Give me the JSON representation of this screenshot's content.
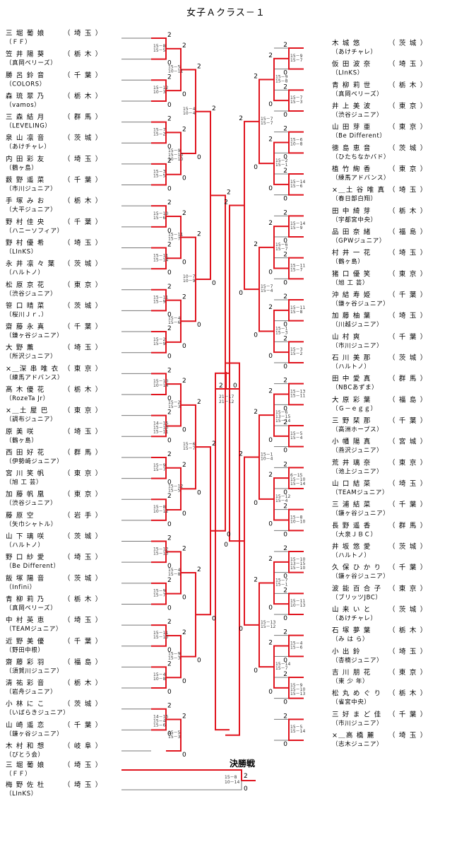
{
  "title": "女子Ａクラス－１",
  "final_title": "決勝戦",
  "left_players": [
    {
      "name": "三 堀 葡 娘",
      "pref": "埼 玉",
      "club": "ＦＦ"
    },
    {
      "name": "笠 井 陽 葵",
      "pref": "栃 木",
      "club": "真岡ベリーズ"
    },
    {
      "name": "勝 呂 鈴 音",
      "pref": "千 葉",
      "club": "COLORS"
    },
    {
      "name": "森 琉 翠 乃",
      "pref": "栃 木",
      "club": "vamos"
    },
    {
      "name": "三 森 結 月",
      "pref": "群 馬",
      "club": "LEVELING"
    },
    {
      "name": "泉 山 凛 音",
      "pref": "茨 城",
      "club": "あけチャレ"
    },
    {
      "name": "内 田 彩 友",
      "pref": "埼 玉",
      "club": "鶴ヶ島"
    },
    {
      "name": "薮 野 遥 菜",
      "pref": "千 葉",
      "club": "市川ジュニア"
    },
    {
      "name": "手 塚 み お",
      "pref": "栃 木",
      "club": "大平ジュニア"
    },
    {
      "name": "野 村 佳 央",
      "pref": "千 葉",
      "club": "ハニーソフィア"
    },
    {
      "name": "野 村 優 希",
      "pref": "埼 玉",
      "club": "LInKS"
    },
    {
      "name": "永 井 凛 々 葉",
      "pref": "茨 城",
      "club": "ハルトノ"
    },
    {
      "name": "松 原 京 花",
      "pref": "東 京",
      "club": "渋谷ジュニア"
    },
    {
      "name": "笹 口 晴 菜",
      "pref": "茨 城",
      "club": "桜川Ｊｒ．"
    },
    {
      "name": "齋 藤 永 真",
      "pref": "千 葉",
      "club": "鎌ヶ谷ジュニア"
    },
    {
      "name": "大 野 薫",
      "pref": "埼 玉",
      "club": "所沢ジュニア"
    },
    {
      "name": "×＿深 串 唯 衣",
      "pref": "東 京",
      "club": "練馬アドバンス"
    },
    {
      "name": "髙 木 優 花",
      "pref": "栃 木",
      "club": "RozeTa Jr"
    },
    {
      "name": "×＿土 屋 巴",
      "pref": "東 京",
      "club": "調布ジュニア"
    },
    {
      "name": "原 美 咲",
      "pref": "埼 玉",
      "club": "鶴ヶ島"
    },
    {
      "name": "西 田 好 花",
      "pref": "群 馬",
      "club": "伊勢崎ジュニア"
    },
    {
      "name": "宮 川 笑 帆",
      "pref": "東 京",
      "club": "旭 工 芸"
    },
    {
      "name": "加 藤 帆 凰",
      "pref": "東 京",
      "club": "渋谷ジュニア"
    },
    {
      "name": "藤 原 空",
      "pref": "岩 手",
      "club": "矢巾シャトル"
    },
    {
      "name": "山 下 璃 咲",
      "pref": "茨 城",
      "club": "ハルトノ"
    },
    {
      "name": "野 口 紗 愛",
      "pref": "埼 玉",
      "club": "Be Different"
    },
    {
      "name": "飯 塚 陽 音",
      "pref": "茨 城",
      "club": "Infini"
    },
    {
      "name": "青 柳 莉 乃",
      "pref": "栃 木",
      "club": "真岡ベリーズ"
    },
    {
      "name": "中 村 英 恵",
      "pref": "埼 玉",
      "club": "TEAMジュニア"
    },
    {
      "name": "近 野 美 優",
      "pref": "千 葉",
      "club": "野田中根"
    },
    {
      "name": "齋 藤 彩 羽",
      "pref": "福 島",
      "club": "須賀川ジュニア"
    },
    {
      "name": "清 祐 彩 音",
      "pref": "栃 木",
      "club": "岩舟ジュニア"
    },
    {
      "name": "小 林 に こ",
      "pref": "茨 城",
      "club": "いばらきジュニア"
    },
    {
      "name": "山 崎 遥 恋",
      "pref": "千 葉",
      "club": "鎌ヶ谷ジュニア"
    },
    {
      "name": "木 村 和 想",
      "pref": "岐 阜",
      "club": "ぴとう会"
    }
  ],
  "right_players": [
    {
      "name": "木 城 悠",
      "pref": "茨 城",
      "club": "あけチャレ"
    },
    {
      "name": "仮 田 波 奈",
      "pref": "埼 玉",
      "club": "LInKS"
    },
    {
      "name": "青 柳 莉 世",
      "pref": "栃 木",
      "club": "真岡ベリーズ"
    },
    {
      "name": "井 上 美 波",
      "pref": "東 京",
      "club": "渋谷ジュニア"
    },
    {
      "name": "山 田 芽 亜",
      "pref": "東 京",
      "club": "Be Different"
    },
    {
      "name": "徳 島 恵 音",
      "pref": "茨 城",
      "club": "ひたちなかバド"
    },
    {
      "name": "植 竹 絢 香",
      "pref": "東 京",
      "club": "練馬アドバンス"
    },
    {
      "name": "×＿土 谷 唯 真",
      "pref": "埼 玉",
      "club": "春日部白翔"
    },
    {
      "name": "田 中 綺 芽",
      "pref": "栃 木",
      "club": "宇都宮中央"
    },
    {
      "name": "品 田 奈 緒",
      "pref": "福 島",
      "club": "GPWジュニア"
    },
    {
      "name": "村 井 一 花",
      "pref": "埼 玉",
      "club": "鶴ヶ島"
    },
    {
      "name": "猪 口 優 笑",
      "pref": "東 京",
      "club": "旭 工 芸"
    },
    {
      "name": "沖 結 寿 姫",
      "pref": "千 葉",
      "club": "鎌ヶ谷ジュニア"
    },
    {
      "name": "加 藤 柚 葉",
      "pref": "埼 玉",
      "club": "川越ジュニア"
    },
    {
      "name": "山 村 爽",
      "pref": "千 葉",
      "club": "市川ジュニア"
    },
    {
      "name": "石 川 美 那",
      "pref": "茨 城",
      "club": "ハルトノ"
    },
    {
      "name": "田 中 愛 真",
      "pref": "群 馬",
      "club": "NBCあずま"
    },
    {
      "name": "大 原 彩 葉",
      "pref": "福 島",
      "club": "Ｇ－ｅｇｇ"
    },
    {
      "name": "三 野 栞 那",
      "pref": "千 葉",
      "club": "高洲ホープス"
    },
    {
      "name": "小 幡 陽 真",
      "pref": "宮 城",
      "club": "燕沢ジュニア"
    },
    {
      "name": "荒 井 璃 奈",
      "pref": "東 京",
      "club": "池上ジュニア"
    },
    {
      "name": "山 口 結 菜",
      "pref": "埼 玉",
      "club": "TEAMジュニア"
    },
    {
      "name": "三 浦 結 菜",
      "pref": "千 葉",
      "club": "鎌ヶ谷ジュニア"
    },
    {
      "name": "長 野 遥 香",
      "pref": "群 馬",
      "club": "大泉ＪＢＣ"
    },
    {
      "name": "井 坂 悠 愛",
      "pref": "茨 城",
      "club": "ハルトノ"
    },
    {
      "name": "久 保 ひ か り",
      "pref": "千 葉",
      "club": "鎌ヶ谷ジュニア"
    },
    {
      "name": "波 能 百 合 子",
      "pref": "東 京",
      "club": "ブリッツJBC"
    },
    {
      "name": "山 来 い と",
      "pref": "茨 城",
      "club": "あけチャレ"
    },
    {
      "name": "石 塚 夢 葉",
      "pref": "栃 木",
      "club": "み は ら"
    },
    {
      "name": "小 出 鈴",
      "pref": "埼 玉",
      "club": "杏楠ジュニア"
    },
    {
      "name": "吉 川 朋 花",
      "pref": "東 京",
      "club": "東 少 年"
    },
    {
      "name": "松 丸 め ぐ り",
      "pref": "栃 木",
      "club": "雀宮中央"
    },
    {
      "name": "三 好 ま ど 佳",
      "pref": "千 葉",
      "club": "市川ジュニア"
    },
    {
      "name": "×＿高 橋 麗",
      "pref": "埼 玉",
      "club": "志木ジュニア"
    }
  ],
  "final_players": [
    {
      "name": "三 堀 葡 娘",
      "pref": "埼 玉",
      "club": "ＦＦ"
    },
    {
      "name": "梅 野 佐 杜",
      "pref": "埼 玉",
      "club": "LInKS"
    }
  ],
  "final_score": [
    "15－8",
    "10－14"
  ],
  "final_results": [
    "2",
    "0"
  ],
  "semifinal_score": [
    "21－17",
    "21－12"
  ],
  "semifinal_results": [
    "2",
    "0"
  ],
  "left_semi_score": [
    "15－9",
    "15－4"
  ],
  "right_semi_score": [
    "15－12",
    "15－7"
  ],
  "left_quarter_scores": [
    [
      "15－5",
      "15－8"
    ],
    [
      "15－10",
      "15－6"
    ]
  ],
  "right_quarter_scores": [
    [
      "15－13",
      "15－8"
    ],
    [
      "15－6",
      "13－15",
      "15－14"
    ]
  ],
  "left_match_scores": [
    [
      "15－8",
      "15－5"
    ],
    [
      "15－12",
      "10－3"
    ],
    [
      "15－7",
      "15－2"
    ],
    [
      "15－3",
      "15－5"
    ],
    [
      "15－10",
      "15－6"
    ],
    [
      "15－11",
      "15－14"
    ],
    [
      "15－11",
      "15－9"
    ],
    [
      "15－2",
      "15－9"
    ],
    [
      "15－10",
      "10－14"
    ],
    [
      "14－15",
      "15－10",
      "15－11"
    ],
    [
      "15－9",
      "15－7"
    ],
    [
      "15－8",
      "10－12"
    ],
    [
      "15－12",
      "15－13"
    ],
    [
      "15－9",
      "15－7"
    ],
    [
      "15－11",
      "15－10"
    ],
    [
      "15－4",
      "10－8"
    ],
    [
      "14－15",
      "15－4",
      "15－6"
    ],
    [
      "15－5",
      "10－11"
    ],
    [
      "15－9",
      "15－10",
      "10－10"
    ],
    [
      "15－11",
      "15－7"
    ],
    [
      "15－4",
      "15－6"
    ],
    [
      "15－2",
      "15－3"
    ],
    [
      "15－12",
      "15－5"
    ],
    [
      "15－4",
      "15－8"
    ],
    [
      "15－9",
      "15－3"
    ],
    [
      "15－5",
      "15－3"
    ],
    [
      "15－4",
      "10－4"
    ],
    [
      "10－7",
      "10－9"
    ],
    [
      "15－6",
      "15－7"
    ]
  ],
  "right_match_scores": [
    [
      "15－9",
      "15－7"
    ],
    [
      "15－7",
      "15－3"
    ],
    [
      "15－6",
      "10－8"
    ],
    [
      "15－14",
      "15－6"
    ],
    [
      "15－14",
      "15－9"
    ],
    [
      "15－11",
      "15－7"
    ],
    [
      "15－11",
      "15－8"
    ],
    [
      "15－3",
      "15－2"
    ],
    [
      "15－13",
      "15－11"
    ],
    [
      "15－5",
      "15－4"
    ],
    [
      "6－15",
      "15－10",
      "15－14"
    ],
    [
      "15－8",
      "10－10"
    ],
    [
      "15－10",
      "13－15",
      "15－10"
    ],
    [
      "15－11",
      "10－13"
    ],
    [
      "15－4",
      "15－6"
    ],
    [
      "15－9",
      "15－10",
      "15－13"
    ],
    [
      "15－5",
      "15－14"
    ],
    [
      "15－9",
      "15－8"
    ],
    [
      "15－2",
      "15－1"
    ],
    [
      "15－6",
      "15－7"
    ],
    [
      "15－1",
      "15－3"
    ],
    [
      "15－6",
      "13－15",
      "15－14"
    ],
    [
      "15－12",
      "15－4"
    ],
    [
      "15－7",
      "15－1"
    ],
    [
      "15－14",
      "15－7"
    ],
    [
      "15－7",
      "15－7"
    ],
    [
      "15－7",
      "15－4"
    ],
    [
      "15－1",
      "10－4"
    ],
    [
      "15－13",
      "15－12"
    ]
  ]
}
